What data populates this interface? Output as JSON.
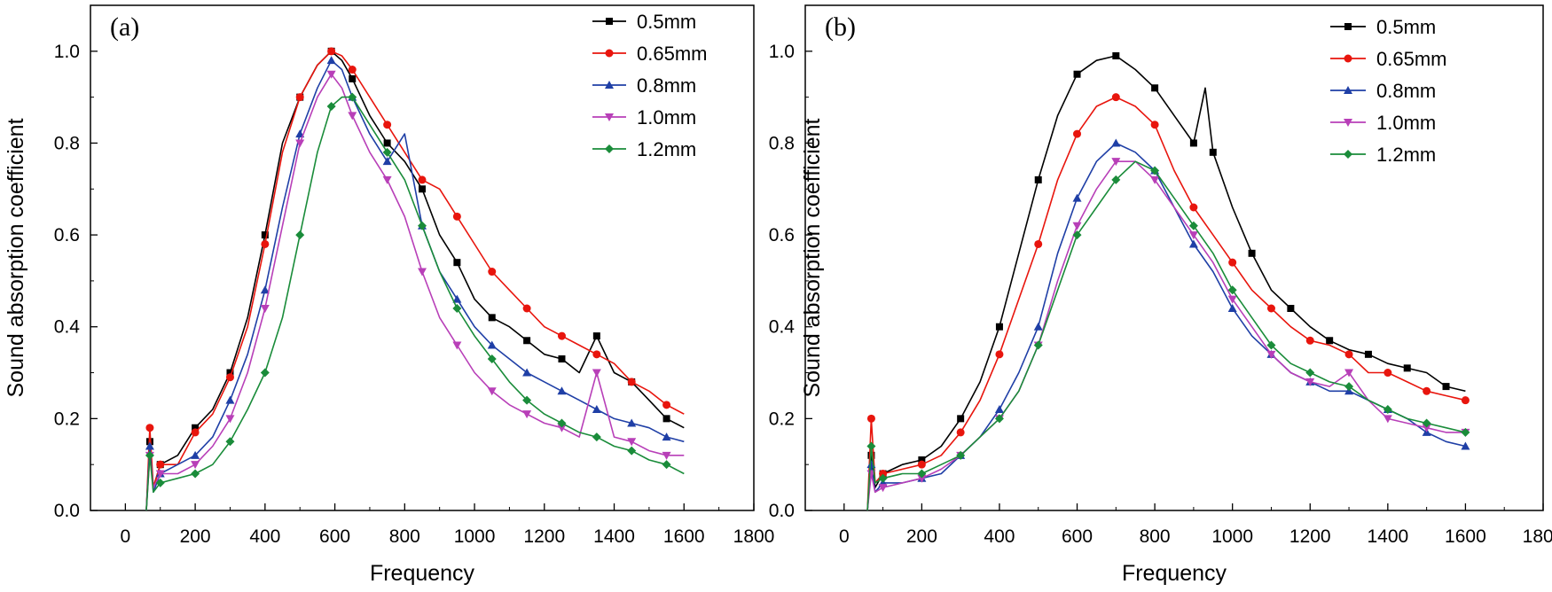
{
  "chart_data": [
    {
      "type": "line",
      "panel_label": "(a)",
      "xlabel": "Frequency",
      "ylabel": "Sound absorption coefficient",
      "xlim": [
        -100,
        1800
      ],
      "ylim": [
        0,
        1.1
      ],
      "xticks": [
        0,
        200,
        400,
        600,
        800,
        1000,
        1200,
        1400,
        1600,
        1800
      ],
      "yticks": [
        "0.0",
        "0.2",
        "0.4",
        "0.6",
        "0.8",
        "1.0"
      ],
      "grid": false,
      "legend_position": "top-right",
      "series": [
        {
          "name": "0.5mm",
          "color": "#000000",
          "marker": "square",
          "x": [
            60,
            70,
            80,
            100,
            150,
            200,
            250,
            300,
            350,
            400,
            450,
            500,
            550,
            590,
            620,
            650,
            700,
            750,
            800,
            850,
            900,
            950,
            1000,
            1050,
            1100,
            1150,
            1200,
            1250,
            1300,
            1350,
            1400,
            1450,
            1500,
            1550,
            1600
          ],
          "y": [
            0.0,
            0.15,
            0.05,
            0.1,
            0.12,
            0.18,
            0.22,
            0.3,
            0.42,
            0.6,
            0.8,
            0.9,
            0.97,
            1.0,
            0.98,
            0.94,
            0.86,
            0.8,
            0.76,
            0.7,
            0.6,
            0.54,
            0.46,
            0.42,
            0.4,
            0.37,
            0.34,
            0.33,
            0.3,
            0.38,
            0.3,
            0.28,
            0.24,
            0.2,
            0.18
          ]
        },
        {
          "name": "0.65mm",
          "color": "#e8150d",
          "marker": "circle",
          "x": [
            60,
            70,
            80,
            100,
            150,
            200,
            250,
            300,
            350,
            400,
            450,
            500,
            550,
            590,
            620,
            650,
            700,
            750,
            800,
            850,
            900,
            950,
            1000,
            1050,
            1100,
            1150,
            1200,
            1250,
            1300,
            1350,
            1400,
            1450,
            1500,
            1550,
            1600
          ],
          "y": [
            0.0,
            0.18,
            0.05,
            0.1,
            0.1,
            0.17,
            0.21,
            0.29,
            0.4,
            0.58,
            0.78,
            0.9,
            0.97,
            1.0,
            0.99,
            0.96,
            0.9,
            0.84,
            0.78,
            0.72,
            0.7,
            0.64,
            0.58,
            0.52,
            0.48,
            0.44,
            0.4,
            0.38,
            0.36,
            0.34,
            0.32,
            0.28,
            0.26,
            0.23,
            0.21
          ]
        },
        {
          "name": "0.8mm",
          "color": "#1f3fa6",
          "marker": "triangle-up",
          "x": [
            60,
            70,
            80,
            100,
            150,
            200,
            250,
            300,
            350,
            400,
            450,
            500,
            550,
            590,
            620,
            650,
            700,
            750,
            800,
            850,
            900,
            950,
            1000,
            1050,
            1100,
            1150,
            1200,
            1250,
            1300,
            1350,
            1400,
            1450,
            1500,
            1550,
            1600
          ],
          "y": [
            0.0,
            0.14,
            0.04,
            0.08,
            0.1,
            0.12,
            0.16,
            0.24,
            0.34,
            0.48,
            0.66,
            0.82,
            0.92,
            0.98,
            0.96,
            0.9,
            0.82,
            0.76,
            0.82,
            0.62,
            0.52,
            0.46,
            0.4,
            0.36,
            0.33,
            0.3,
            0.28,
            0.26,
            0.24,
            0.22,
            0.2,
            0.19,
            0.18,
            0.16,
            0.15
          ]
        },
        {
          "name": "1.0mm",
          "color": "#b83fb8",
          "marker": "triangle-down",
          "x": [
            60,
            70,
            80,
            100,
            150,
            200,
            250,
            300,
            350,
            400,
            450,
            500,
            550,
            590,
            620,
            650,
            700,
            750,
            800,
            850,
            900,
            950,
            1000,
            1050,
            1100,
            1150,
            1200,
            1250,
            1300,
            1350,
            1400,
            1450,
            1500,
            1550,
            1600
          ],
          "y": [
            0.0,
            0.12,
            0.05,
            0.08,
            0.08,
            0.1,
            0.14,
            0.2,
            0.3,
            0.44,
            0.62,
            0.8,
            0.9,
            0.95,
            0.92,
            0.86,
            0.78,
            0.72,
            0.64,
            0.52,
            0.42,
            0.36,
            0.3,
            0.26,
            0.23,
            0.21,
            0.19,
            0.18,
            0.16,
            0.3,
            0.16,
            0.15,
            0.13,
            0.12,
            0.12
          ]
        },
        {
          "name": "1.2mm",
          "color": "#1a8c3a",
          "marker": "diamond",
          "x": [
            60,
            70,
            80,
            100,
            150,
            200,
            250,
            300,
            350,
            400,
            450,
            500,
            550,
            590,
            620,
            650,
            700,
            750,
            800,
            850,
            900,
            950,
            1000,
            1050,
            1100,
            1150,
            1200,
            1250,
            1300,
            1350,
            1400,
            1450,
            1500,
            1550,
            1600
          ],
          "y": [
            0.0,
            0.12,
            0.04,
            0.06,
            0.07,
            0.08,
            0.1,
            0.15,
            0.22,
            0.3,
            0.42,
            0.6,
            0.78,
            0.88,
            0.9,
            0.9,
            0.84,
            0.78,
            0.72,
            0.62,
            0.52,
            0.44,
            0.38,
            0.33,
            0.28,
            0.24,
            0.21,
            0.19,
            0.17,
            0.16,
            0.14,
            0.13,
            0.11,
            0.1,
            0.08
          ]
        }
      ]
    },
    {
      "type": "line",
      "panel_label": "(b)",
      "xlabel": "Frequency",
      "ylabel": "Sound absorption coefficient",
      "xlim": [
        -100,
        1800
      ],
      "ylim": [
        0,
        1.1
      ],
      "xticks": [
        0,
        200,
        400,
        600,
        800,
        1000,
        1200,
        1400,
        1600,
        1800
      ],
      "yticks": [
        "0.0",
        "0.2",
        "0.4",
        "0.6",
        "0.8",
        "1.0"
      ],
      "grid": false,
      "legend_position": "top-right",
      "series": [
        {
          "name": "0.5mm",
          "color": "#000000",
          "marker": "square",
          "x": [
            60,
            70,
            80,
            100,
            150,
            200,
            250,
            300,
            350,
            400,
            450,
            500,
            550,
            600,
            650,
            700,
            750,
            800,
            850,
            900,
            930,
            950,
            1000,
            1050,
            1100,
            1150,
            1200,
            1250,
            1300,
            1350,
            1400,
            1450,
            1500,
            1550,
            1600
          ],
          "y": [
            0.0,
            0.12,
            0.05,
            0.08,
            0.1,
            0.11,
            0.14,
            0.2,
            0.28,
            0.4,
            0.56,
            0.72,
            0.86,
            0.95,
            0.98,
            0.99,
            0.96,
            0.92,
            0.86,
            0.8,
            0.92,
            0.78,
            0.66,
            0.56,
            0.48,
            0.44,
            0.4,
            0.37,
            0.35,
            0.34,
            0.32,
            0.31,
            0.3,
            0.27,
            0.26
          ]
        },
        {
          "name": "0.65mm",
          "color": "#e8150d",
          "marker": "circle",
          "x": [
            60,
            70,
            80,
            100,
            150,
            200,
            250,
            300,
            350,
            400,
            450,
            500,
            550,
            600,
            650,
            700,
            750,
            800,
            850,
            900,
            950,
            1000,
            1050,
            1100,
            1150,
            1200,
            1250,
            1300,
            1350,
            1400,
            1450,
            1500,
            1550,
            1600
          ],
          "y": [
            0.0,
            0.2,
            0.06,
            0.08,
            0.09,
            0.1,
            0.12,
            0.17,
            0.24,
            0.34,
            0.46,
            0.58,
            0.72,
            0.82,
            0.88,
            0.9,
            0.88,
            0.84,
            0.74,
            0.66,
            0.6,
            0.54,
            0.48,
            0.44,
            0.4,
            0.37,
            0.36,
            0.34,
            0.3,
            0.3,
            0.28,
            0.26,
            0.25,
            0.24
          ]
        },
        {
          "name": "0.8mm",
          "color": "#1f3fa6",
          "marker": "triangle-up",
          "x": [
            60,
            70,
            80,
            100,
            150,
            200,
            250,
            300,
            350,
            400,
            450,
            500,
            550,
            600,
            650,
            700,
            750,
            800,
            850,
            900,
            950,
            1000,
            1050,
            1100,
            1150,
            1200,
            1250,
            1300,
            1350,
            1400,
            1450,
            1500,
            1550,
            1600
          ],
          "y": [
            0.0,
            0.1,
            0.04,
            0.06,
            0.06,
            0.07,
            0.08,
            0.12,
            0.16,
            0.22,
            0.3,
            0.4,
            0.56,
            0.68,
            0.76,
            0.8,
            0.78,
            0.74,
            0.66,
            0.58,
            0.52,
            0.44,
            0.38,
            0.34,
            0.3,
            0.28,
            0.26,
            0.26,
            0.24,
            0.22,
            0.2,
            0.17,
            0.15,
            0.14
          ]
        },
        {
          "name": "1.0mm",
          "color": "#b83fb8",
          "marker": "triangle-down",
          "x": [
            60,
            70,
            80,
            100,
            150,
            200,
            250,
            300,
            350,
            400,
            450,
            500,
            550,
            600,
            650,
            700,
            750,
            800,
            850,
            900,
            950,
            1000,
            1050,
            1100,
            1150,
            1200,
            1250,
            1300,
            1350,
            1400,
            1450,
            1500,
            1550,
            1600
          ],
          "y": [
            0.0,
            0.08,
            0.04,
            0.05,
            0.06,
            0.07,
            0.09,
            0.12,
            0.16,
            0.2,
            0.26,
            0.36,
            0.5,
            0.62,
            0.7,
            0.76,
            0.76,
            0.72,
            0.66,
            0.6,
            0.54,
            0.46,
            0.4,
            0.34,
            0.3,
            0.28,
            0.27,
            0.3,
            0.24,
            0.2,
            0.19,
            0.18,
            0.17,
            0.17
          ]
        },
        {
          "name": "1.2mm",
          "color": "#1a8c3a",
          "marker": "diamond",
          "x": [
            60,
            70,
            80,
            100,
            150,
            200,
            250,
            300,
            350,
            400,
            450,
            500,
            550,
            600,
            650,
            700,
            750,
            800,
            850,
            900,
            950,
            1000,
            1050,
            1100,
            1150,
            1200,
            1250,
            1300,
            1350,
            1400,
            1450,
            1500,
            1550,
            1600
          ],
          "y": [
            0.0,
            0.14,
            0.06,
            0.07,
            0.08,
            0.08,
            0.1,
            0.12,
            0.16,
            0.2,
            0.26,
            0.36,
            0.48,
            0.6,
            0.66,
            0.72,
            0.76,
            0.74,
            0.68,
            0.62,
            0.56,
            0.48,
            0.42,
            0.36,
            0.32,
            0.3,
            0.28,
            0.27,
            0.24,
            0.22,
            0.2,
            0.19,
            0.18,
            0.17
          ]
        }
      ]
    }
  ]
}
